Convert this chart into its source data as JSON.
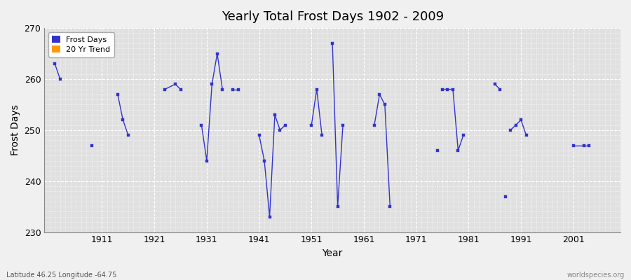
{
  "title": "Yearly Total Frost Days 1902 - 2009",
  "xlabel": "Year",
  "ylabel": "Frost Days",
  "ylim": [
    230,
    270
  ],
  "xlim": [
    1900,
    2010
  ],
  "yticks": [
    230,
    240,
    250,
    260,
    270
  ],
  "xticks": [
    1911,
    1921,
    1931,
    1941,
    1951,
    1961,
    1971,
    1981,
    1991,
    2001
  ],
  "line_color": "#3333cc",
  "marker_color": "#3333cc",
  "bg_color": "#e0e0e0",
  "outer_bg": "#f0f0f0",
  "grid_color": "#ffffff",
  "legend_entries": [
    {
      "label": "Frost Days",
      "color": "#3333cc"
    },
    {
      "label": "20 Yr Trend",
      "color": "#ff9900"
    }
  ],
  "watermark_left": "Latitude 46.25 Longitude -64.75",
  "watermark_right": "worldspecies.org",
  "data_groups": [
    {
      "years": [
        1902,
        1903
      ],
      "values": [
        263,
        260
      ]
    },
    {
      "years": [
        1909
      ],
      "values": [
        247
      ]
    },
    {
      "years": [
        1914,
        1915,
        1916
      ],
      "values": [
        257,
        252,
        249
      ]
    },
    {
      "years": [
        1923,
        1925,
        1926
      ],
      "values": [
        258,
        259,
        258
      ]
    },
    {
      "years": [
        1930,
        1931,
        1932,
        1933,
        1934
      ],
      "values": [
        251,
        244,
        259,
        265,
        258
      ]
    },
    {
      "years": [
        1936,
        1937
      ],
      "values": [
        258,
        258
      ]
    },
    {
      "years": [
        1941,
        1942,
        1943,
        1944,
        1945,
        1946
      ],
      "values": [
        249,
        244,
        233,
        253,
        250,
        251
      ]
    },
    {
      "years": [
        1951,
        1952,
        1953
      ],
      "values": [
        251,
        258,
        249
      ]
    },
    {
      "years": [
        1955,
        1956,
        1957
      ],
      "values": [
        267,
        235,
        251
      ]
    },
    {
      "years": [
        1963,
        1964,
        1965,
        1966
      ],
      "values": [
        251,
        257,
        255,
        235
      ]
    },
    {
      "years": [
        1975
      ],
      "values": [
        246
      ]
    },
    {
      "years": [
        1976,
        1977,
        1978,
        1979,
        1980
      ],
      "values": [
        258,
        258,
        258,
        246,
        249
      ]
    },
    {
      "years": [
        1986,
        1987
      ],
      "values": [
        259,
        258
      ]
    },
    {
      "years": [
        1988
      ],
      "values": [
        237
      ]
    },
    {
      "years": [
        1989,
        1990,
        1991,
        1992
      ],
      "values": [
        250,
        251,
        252,
        249
      ]
    },
    {
      "years": [
        2001,
        2003,
        2004
      ],
      "values": [
        247,
        247,
        247
      ]
    }
  ]
}
